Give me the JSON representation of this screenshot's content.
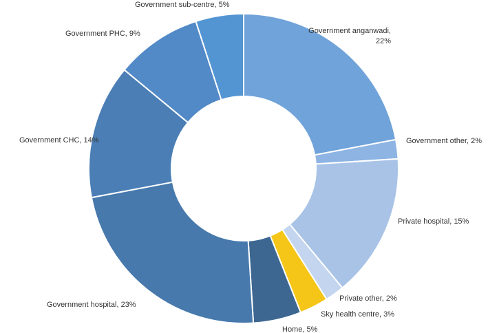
{
  "chart_data": {
    "type": "pie",
    "variant": "donut",
    "title": "",
    "start_angle_deg": 0,
    "direction": "clockwise",
    "categories": [
      "Government anganwadi",
      "Government other",
      "Private hospital",
      "Private other",
      "Sky health centre",
      "Home",
      "Government hospital",
      "Government CHC",
      "Government PHC",
      "Government sub-centre"
    ],
    "values": [
      22,
      2,
      15,
      2,
      3,
      5,
      23,
      14,
      9,
      5
    ],
    "labels": [
      [
        "Government anganwadi,",
        "22%"
      ],
      [
        "Government other, 2%"
      ],
      [
        "Private hospital, 15%"
      ],
      [
        "Private other, 2%"
      ],
      [
        "Sky health centre, 3%"
      ],
      [
        "Home, 5%"
      ],
      [
        "Government hospital, 23%"
      ],
      [
        "Government CHC, 14%"
      ],
      [
        "Government PHC, 9%"
      ],
      [
        "Government sub-centre, 5%"
      ]
    ],
    "colors": [
      "#6FA3D9",
      "#8DB4E2",
      "#A9C3E7",
      "#C3D5EF",
      "#F5C518",
      "#3D6791",
      "#4779AD",
      "#4A7EB5",
      "#5289C7",
      "#5395D3"
    ],
    "legend": "none"
  }
}
